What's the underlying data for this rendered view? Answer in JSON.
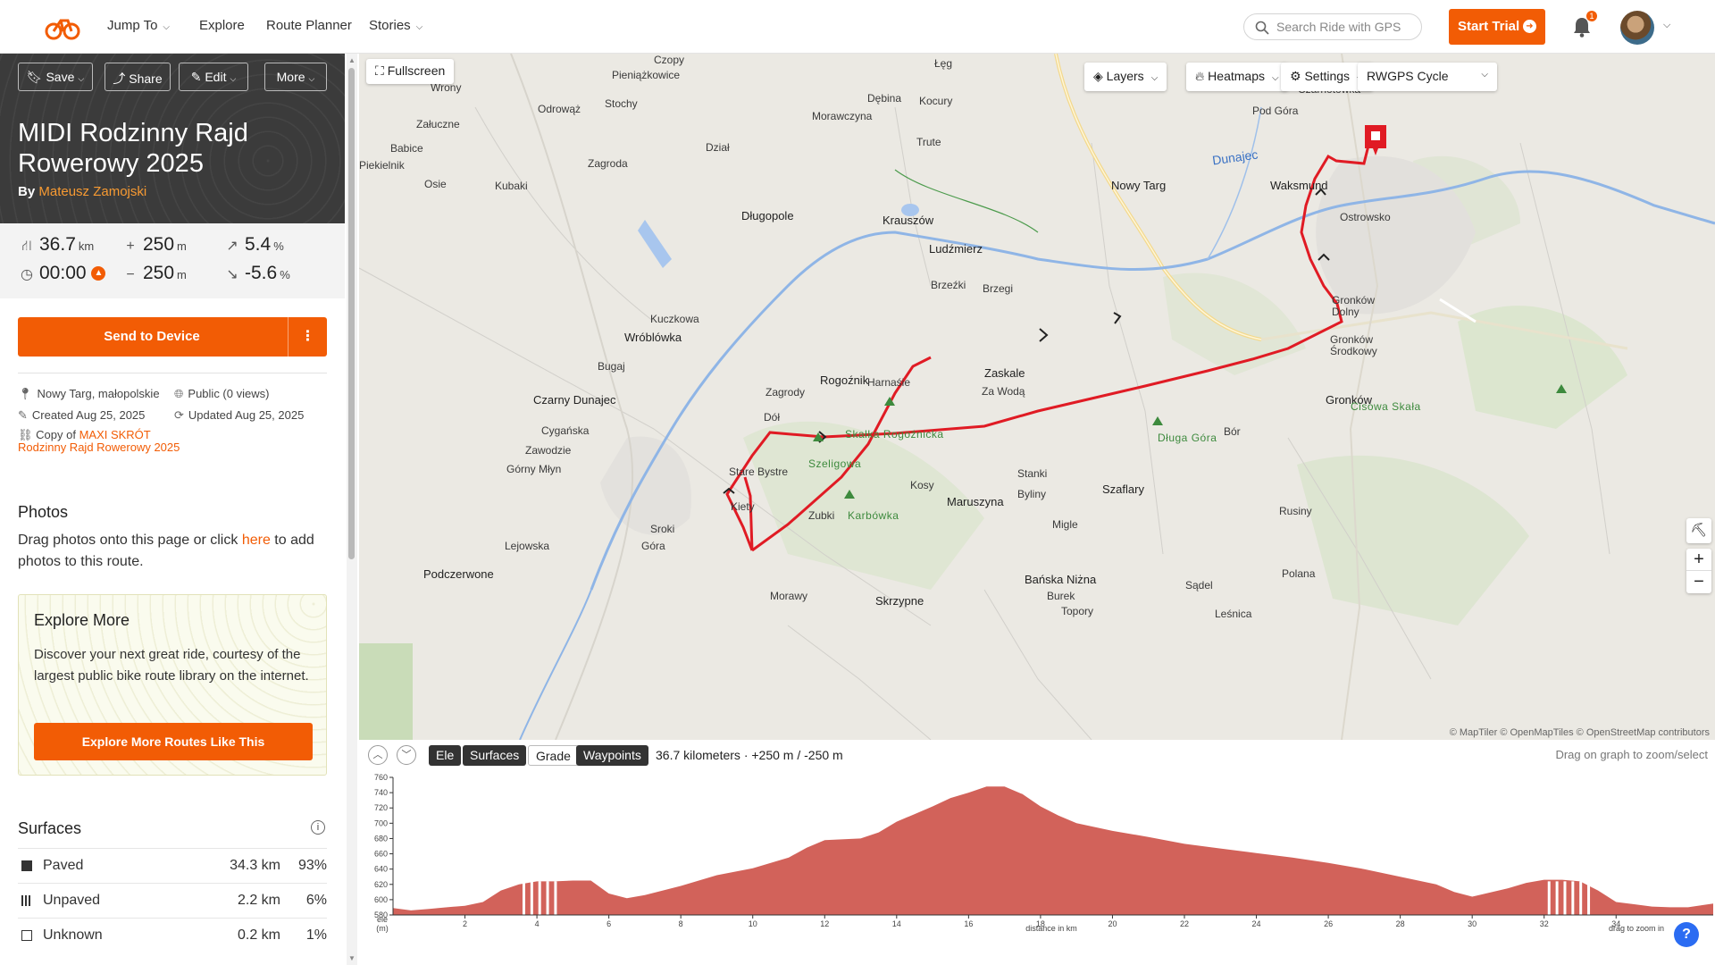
{
  "nav": {
    "jump_to": "Jump To",
    "explore": "Explore",
    "route_planner": "Route Planner",
    "stories": "Stories",
    "search_placeholder": "Search Ride with GPS",
    "start_trial": "Start Trial",
    "notifications_count": "1"
  },
  "toolbar": {
    "save": "Save",
    "share": "Share",
    "edit": "Edit",
    "more": "More"
  },
  "route": {
    "title": "MIDI Rodzinny Rajd Rowerowy 2025",
    "by_label": "By",
    "author": "Mateusz Zamojski"
  },
  "stats": {
    "distance": "36.7",
    "distance_unit": "km",
    "elevation_gain": "250",
    "elevation_gain_unit": "m",
    "max_grade": "5.4",
    "max_grade_unit": "%",
    "time": "00:00",
    "elevation_loss": "250",
    "elevation_loss_unit": "m",
    "min_grade": "-5.6",
    "min_grade_unit": "%"
  },
  "actions": {
    "send_to_device": "Send to Device"
  },
  "meta": {
    "location": "Nowy Targ, małopolskie",
    "visibility": "Public (0 views)",
    "created": "Created Aug 25, 2025",
    "updated": "Updated Aug 25, 2025",
    "copy_of_label": "Copy of",
    "copy_of_link": "MAXI SKRÓT Rodzinny Rajd Rowerowy 2025"
  },
  "photos": {
    "heading": "Photos",
    "text_before": "Drag photos onto this page or click ",
    "link": "here",
    "text_after": " to add photos to this route."
  },
  "explore_more": {
    "heading": "Explore More",
    "text": "Discover your next great ride, courtesy of the largest public bike route library on the internet.",
    "button": "Explore More Routes Like This"
  },
  "surfaces": {
    "heading": "Surfaces",
    "rows": [
      {
        "name": "Paved",
        "km": "34.3 km",
        "pct": "93%"
      },
      {
        "name": "Unpaved",
        "km": "2.2 km",
        "pct": "6%"
      },
      {
        "name": "Unknown",
        "km": "0.2 km",
        "pct": "1%"
      }
    ]
  },
  "map": {
    "fullscreen": "Fullscreen",
    "layers": "Layers",
    "heatmaps": "Heatmaps",
    "settings": "Settings",
    "basemap": "RWGPS Cycle",
    "attribution": "© MapTiler © OpenMapTiles © OpenStreetMap contributors",
    "labels": [
      "Czopy",
      "Pieniążkowice",
      "Łęg",
      "Wrony",
      "Odrowąż",
      "Stochy",
      "Morawczyna",
      "Dębina",
      "Kocury",
      "Załucznе",
      "Babice",
      "Trute",
      "Piekielnik",
      "Zagroda",
      "Dział",
      "Osie",
      "Kubaki",
      "Długopole",
      "Krauszów",
      "Ludźmierz",
      "Brzeźki",
      "Brzegi",
      "Kuczkowa",
      "Wróblówka",
      "Bugaj",
      "Czarny Dunajec",
      "Cygańska",
      "Zawodzie",
      "Górny Młyn",
      "Zagrody",
      "Dół",
      "Rogoźnik",
      "Harnaśie",
      "Zaskale",
      "Za Wodą",
      "Stare Bystre",
      "Kiety",
      "Zubki",
      "Kosy",
      "Maruszyna",
      "Stanki",
      "Byliny",
      "Szaflary",
      "Nowy Targ",
      "Waksmund",
      "Ostrowsko",
      "Pod Góra",
      "Czarnotówka",
      "Gronków Dolny",
      "Gronków Środkowy",
      "Gronków",
      "Bór",
      "Rusiny",
      "Migle",
      "Bańska Niżna",
      "Burek",
      "Topory",
      "Skrzypne",
      "Morawy",
      "Sroki",
      "Góra",
      "Lejowska",
      "Podczerwone",
      "Sądel",
      "Polana",
      "Leśnica"
    ],
    "peaks": [
      "Skałka Rogoźnicka",
      "Szeligowa",
      "Karbówka",
      "Długa Góra",
      "Cisowa Skała"
    ],
    "rivers": [
      "Dunajec"
    ]
  },
  "elevation": {
    "tabs": [
      "Ele",
      "Surfaces",
      "Grade",
      "Waypoints"
    ],
    "summary": "36.7 kilometers · +250 m / -250 m",
    "hint": "Drag on graph to zoom/select",
    "y_label_top": "ele",
    "y_label_bottom": "(m)",
    "x_label": "distance in km",
    "zoom_hint": "drag to zoom in"
  },
  "chart_data": {
    "type": "area",
    "xlabel": "distance in km",
    "ylabel": "ele (m)",
    "ylim": [
      580,
      760
    ],
    "xlim": [
      0,
      36.7
    ],
    "x_ticks": [
      2,
      4,
      6,
      8,
      10,
      12,
      14,
      16,
      18,
      20,
      22,
      24,
      26,
      28,
      30,
      32,
      34
    ],
    "y_ticks": [
      580,
      600,
      620,
      640,
      660,
      680,
      700,
      720,
      740,
      760
    ],
    "x": [
      0,
      0.5,
      1,
      1.5,
      2,
      2.5,
      3,
      3.5,
      4,
      4.5,
      5,
      5.5,
      6,
      6.5,
      7,
      8,
      9,
      10,
      11,
      11.5,
      12,
      13,
      13.5,
      14,
      14.5,
      15,
      15.5,
      16,
      16.5,
      17,
      17.5,
      18,
      18.5,
      19,
      20,
      21,
      22,
      23,
      24,
      25,
      26,
      27,
      28,
      29,
      29.5,
      30,
      31,
      31.5,
      32,
      32.5,
      33,
      33.5,
      34,
      34.5,
      35,
      35.5,
      36,
      36.7
    ],
    "values": [
      589,
      586,
      588,
      590,
      592,
      597,
      612,
      620,
      624,
      624,
      625,
      625,
      608,
      602,
      606,
      618,
      632,
      641,
      655,
      668,
      678,
      680,
      688,
      702,
      712,
      722,
      733,
      740,
      748,
      748,
      738,
      722,
      710,
      700,
      690,
      682,
      673,
      667,
      661,
      655,
      648,
      640,
      630,
      620,
      610,
      604,
      615,
      622,
      626,
      626,
      624,
      612,
      597,
      594,
      591,
      590,
      590,
      595
    ],
    "color": "#d2625a"
  }
}
